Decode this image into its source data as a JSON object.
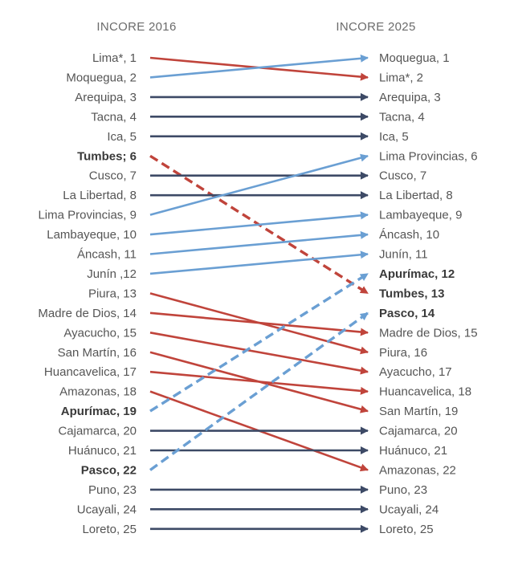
{
  "chart_data": {
    "type": "slope",
    "left_title": "INCORE 2016",
    "right_title": "INCORE 2025",
    "colors": {
      "same": "#3d4a66",
      "up": "#6a9fd3",
      "down": "#c0443b"
    },
    "rows": [
      {
        "left_label": "Lima*, 1",
        "right_label": "Moquegua, 1",
        "from": 1,
        "to": 2,
        "move": "down",
        "dashed": false,
        "bold_left": false,
        "bold_right": false
      },
      {
        "left_label": "Moquegua, 2",
        "right_label": "Lima*, 2",
        "from": 2,
        "to": 1,
        "move": "up",
        "dashed": false,
        "bold_left": false,
        "bold_right": false
      },
      {
        "left_label": "Arequipa, 3",
        "right_label": "Arequipa, 3",
        "from": 3,
        "to": 3,
        "move": "same",
        "dashed": false,
        "bold_left": false,
        "bold_right": false
      },
      {
        "left_label": "Tacna, 4",
        "right_label": "Tacna, 4",
        "from": 4,
        "to": 4,
        "move": "same",
        "dashed": false,
        "bold_left": false,
        "bold_right": false
      },
      {
        "left_label": "Ica, 5",
        "right_label": "Ica, 5",
        "from": 5,
        "to": 5,
        "move": "same",
        "dashed": false,
        "bold_left": false,
        "bold_right": false
      },
      {
        "left_label": "Tumbes; 6",
        "right_label": "Lima Provincias, 6",
        "from": 6,
        "to": 13,
        "move": "down",
        "dashed": true,
        "bold_left": true,
        "bold_right": false
      },
      {
        "left_label": "Cusco, 7",
        "right_label": "Cusco, 7",
        "from": 7,
        "to": 7,
        "move": "same",
        "dashed": false,
        "bold_left": false,
        "bold_right": false
      },
      {
        "left_label": "La Libertad, 8",
        "right_label": "La Libertad, 8",
        "from": 8,
        "to": 8,
        "move": "same",
        "dashed": false,
        "bold_left": false,
        "bold_right": false
      },
      {
        "left_label": "Lima Provincias, 9",
        "right_label": "Lambayeque, 9",
        "from": 9,
        "to": 6,
        "move": "up",
        "dashed": false,
        "bold_left": false,
        "bold_right": false
      },
      {
        "left_label": "Lambayeque, 10",
        "right_label": "Áncash, 10",
        "from": 10,
        "to": 9,
        "move": "up",
        "dashed": false,
        "bold_left": false,
        "bold_right": false
      },
      {
        "left_label": "Áncash, 11",
        "right_label": "Junín, 11",
        "from": 11,
        "to": 10,
        "move": "up",
        "dashed": false,
        "bold_left": false,
        "bold_right": false
      },
      {
        "left_label": "Junín ,12",
        "right_label": "Apurímac, 12",
        "from": 12,
        "to": 11,
        "move": "up",
        "dashed": false,
        "bold_left": false,
        "bold_right": true
      },
      {
        "left_label": "Piura, 13",
        "right_label": "Tumbes, 13",
        "from": 13,
        "to": 16,
        "move": "down",
        "dashed": false,
        "bold_left": false,
        "bold_right": true
      },
      {
        "left_label": "Madre de Dios, 14",
        "right_label": "Pasco, 14",
        "from": 14,
        "to": 15,
        "move": "down",
        "dashed": false,
        "bold_left": false,
        "bold_right": true
      },
      {
        "left_label": "Ayacucho, 15",
        "right_label": "Madre de Dios, 15",
        "from": 15,
        "to": 17,
        "move": "down",
        "dashed": false,
        "bold_left": false,
        "bold_right": false
      },
      {
        "left_label": "San Martín, 16",
        "right_label": "Piura, 16",
        "from": 16,
        "to": 19,
        "move": "down",
        "dashed": false,
        "bold_left": false,
        "bold_right": false
      },
      {
        "left_label": "Huancavelica, 17",
        "right_label": "Ayacucho, 17",
        "from": 17,
        "to": 18,
        "move": "down",
        "dashed": false,
        "bold_left": false,
        "bold_right": false
      },
      {
        "left_label": "Amazonas, 18",
        "right_label": "Huancavelica, 18",
        "from": 18,
        "to": 22,
        "move": "down",
        "dashed": false,
        "bold_left": false,
        "bold_right": false
      },
      {
        "left_label": "Apurímac, 19",
        "right_label": "San Martín, 19",
        "from": 19,
        "to": 12,
        "move": "up",
        "dashed": true,
        "bold_left": true,
        "bold_right": false
      },
      {
        "left_label": "Cajamarca, 20",
        "right_label": "Cajamarca, 20",
        "from": 20,
        "to": 20,
        "move": "same",
        "dashed": false,
        "bold_left": false,
        "bold_right": false
      },
      {
        "left_label": "Huánuco, 21",
        "right_label": "Huánuco,  21",
        "from": 21,
        "to": 21,
        "move": "same",
        "dashed": false,
        "bold_left": false,
        "bold_right": false
      },
      {
        "left_label": "Pasco, 22",
        "right_label": "Amazonas, 22",
        "from": 22,
        "to": 14,
        "move": "up",
        "dashed": true,
        "bold_left": true,
        "bold_right": false
      },
      {
        "left_label": "Puno, 23",
        "right_label": "Puno, 23",
        "from": 23,
        "to": 23,
        "move": "same",
        "dashed": false,
        "bold_left": false,
        "bold_right": false
      },
      {
        "left_label": "Ucayali, 24",
        "right_label": "Ucayali, 24",
        "from": 24,
        "to": 24,
        "move": "same",
        "dashed": false,
        "bold_left": false,
        "bold_right": false
      },
      {
        "left_label": "Loreto, 25",
        "right_label": "Loreto, 25",
        "from": 25,
        "to": 25,
        "move": "same",
        "dashed": false,
        "bold_left": false,
        "bold_right": false
      }
    ]
  }
}
